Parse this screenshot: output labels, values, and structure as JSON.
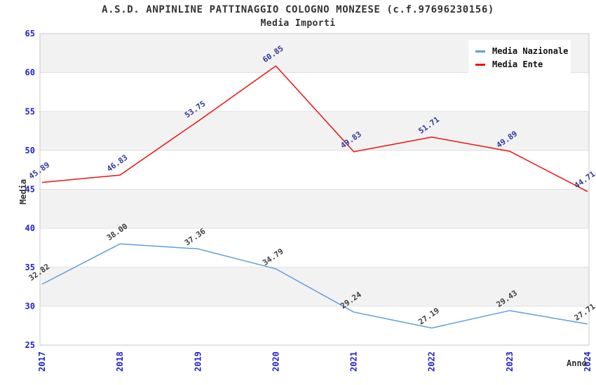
{
  "title": "A.S.D. ANPINLINE PATTINAGGIO COLOGNO MONZESE (c.f.97696230156)",
  "subtitle": "Media Importi",
  "chart_data": {
    "type": "line",
    "title": "A.S.D. ANPINLINE PATTINAGGIO COLOGNO MONZESE (c.f.97696230156)",
    "subtitle": "Media Importi",
    "xlabel": "Anno",
    "ylabel": "Media",
    "categories": [
      "2017",
      "2018",
      "2019",
      "2020",
      "2021",
      "2022",
      "2023",
      "2024"
    ],
    "series": [
      {
        "name": "Media Nazionale",
        "color": "#5f9fdc",
        "label_color": "#3f3f3f",
        "values": [
          32.82,
          38.0,
          37.36,
          34.79,
          29.24,
          27.19,
          29.43,
          27.71
        ],
        "labels": [
          "32.82",
          "38.00",
          "37.36",
          "34.79",
          "29.24",
          "27.19",
          "29.43",
          "27.71"
        ]
      },
      {
        "name": "Media Ente",
        "color": "#ee1111",
        "label_color": "#333a9e",
        "values": [
          45.89,
          46.83,
          53.75,
          60.85,
          49.83,
          51.71,
          49.89,
          44.71
        ],
        "labels": [
          "45.89",
          "46.83",
          "53.75",
          "60.85",
          "49.83",
          "51.71",
          "49.89",
          "44.71"
        ]
      }
    ],
    "ylim": [
      25,
      65
    ],
    "ytick_step": 5,
    "yticks": [
      "25",
      "30",
      "35",
      "40",
      "45",
      "50",
      "55",
      "60",
      "65"
    ],
    "grid": "horizontal-bands",
    "legend_position": "top-right",
    "colors": {
      "tick_label": "#2020d0",
      "band_gray": "#f2f2f2",
      "band_white": "#ffffff",
      "gridline": "#e0e0e0",
      "plot_border": "#c9c9c9",
      "title_text": "#333333",
      "legend_text": "#111111"
    }
  }
}
